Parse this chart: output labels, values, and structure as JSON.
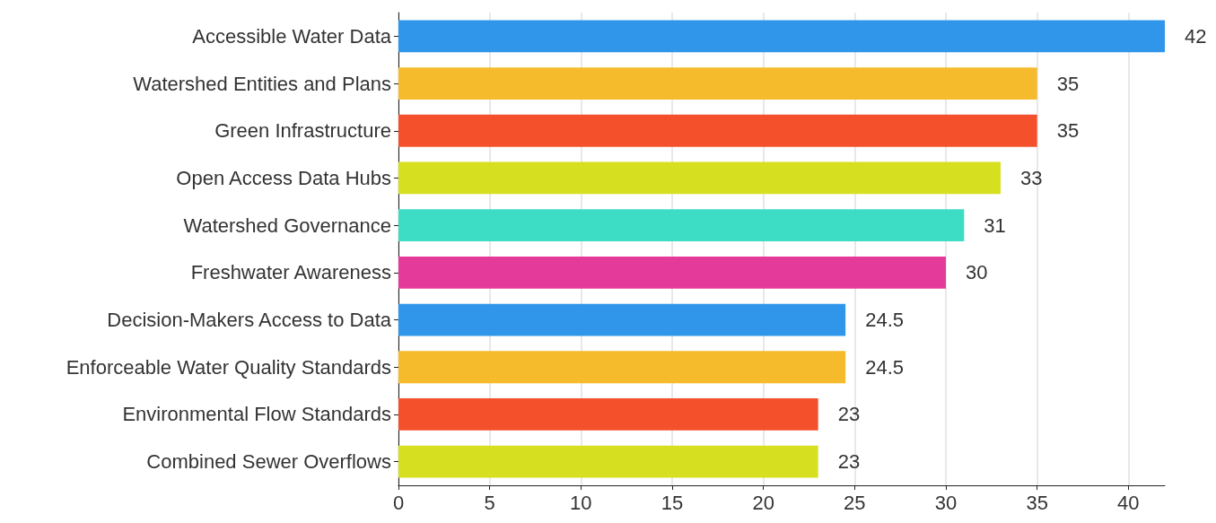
{
  "chart_data": {
    "type": "bar",
    "orientation": "horizontal",
    "categories": [
      "Accessible Water Data",
      "Watershed Entities and Plans",
      "Green Infrastructure",
      "Open Access Data Hubs",
      "Watershed Governance",
      "Freshwater Awareness",
      "Decision-Makers Access to Data",
      "Enforceable Water Quality Standards",
      "Environmental Flow Standards",
      "Combined Sewer Overflows"
    ],
    "values": [
      42,
      35,
      35,
      33,
      31,
      30,
      24.5,
      24.5,
      23,
      23
    ],
    "colors": [
      "#3096ea",
      "#f6bb2c",
      "#f4502c",
      "#d6e021",
      "#3ddcc4",
      "#e43b9b",
      "#3096ea",
      "#f6bb2c",
      "#f4502c",
      "#d6e021"
    ],
    "xlim": [
      0,
      42
    ],
    "xticks": [
      0,
      5,
      10,
      15,
      20,
      25,
      30,
      35,
      40
    ],
    "grid": "x",
    "data_labels": true
  }
}
